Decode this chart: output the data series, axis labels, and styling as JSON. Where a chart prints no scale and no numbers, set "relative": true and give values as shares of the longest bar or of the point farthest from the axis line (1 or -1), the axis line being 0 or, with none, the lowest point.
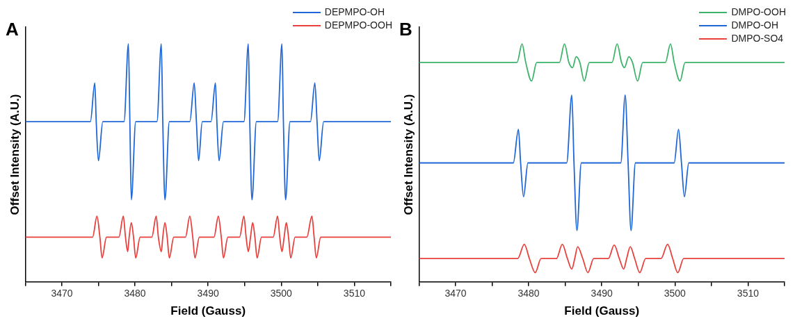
{
  "chart_data": [
    {
      "type": "line",
      "title": "A",
      "xlabel": "Field (Gauss)",
      "ylabel": "Offset Intensity (A.U.)",
      "relative": true,
      "legend": "top right",
      "grid": false,
      "marker": "none",
      "line_style": "solid",
      "xlim": [
        3465,
        3515
      ],
      "xticks": [
        {
          "value": 3465,
          "label": null
        },
        3470,
        {
          "value": 3475,
          "label": null
        },
        3480,
        {
          "value": 3485,
          "label": null
        },
        3490,
        {
          "value": 3495,
          "label": null
        },
        3500,
        {
          "value": 3505,
          "label": null
        },
        3510,
        {
          "value": 3515,
          "label": null
        }
      ],
      "series": [
        {
          "name": "DEPMPO-OH",
          "color": "#1f66d6",
          "x": [
            3465,
            3473.9,
            3474.5,
            3474.7,
            3475.0,
            3475.6,
            3478.5,
            3479.1,
            3479.3,
            3479.5,
            3480.1,
            3483.0,
            3483.6,
            3483.8,
            3484.1,
            3484.7,
            3487.5,
            3488.1,
            3488.4,
            3488.7,
            3489.2,
            3490.4,
            3491.0,
            3491.2,
            3491.5,
            3492.1,
            3494.9,
            3495.5,
            3495.7,
            3496.0,
            3496.6,
            3499.5,
            3500.1,
            3500.3,
            3500.6,
            3501.2,
            3504.0,
            3504.6,
            3504.9,
            3505.2,
            3505.8,
            3515
          ],
          "values": [
            0.673,
            0.673,
            0.836,
            0.673,
            0.509,
            0.673,
            0.673,
            1.0,
            0.673,
            0.345,
            0.673,
            0.673,
            1.0,
            0.673,
            0.345,
            0.673,
            0.673,
            0.836,
            0.673,
            0.509,
            0.673,
            0.673,
            0.836,
            0.673,
            0.509,
            0.673,
            0.673,
            1.0,
            0.673,
            0.345,
            0.673,
            0.673,
            1.0,
            0.673,
            0.345,
            0.673,
            0.673,
            0.836,
            0.673,
            0.509,
            0.673,
            0.673
          ]
        },
        {
          "name": "DEPMPO-OOH",
          "color": "#e8403c",
          "x": [
            3465,
            3474.2,
            3474.8,
            3475.2,
            3475.5,
            3476.1,
            3477.8,
            3478.4,
            3478.7,
            3479.0,
            3479.2,
            3479.5,
            3479.8,
            3480.1,
            3480.7,
            3482.3,
            3482.9,
            3483.2,
            3483.6,
            3483.8,
            3484.1,
            3484.4,
            3484.7,
            3485.3,
            3486.9,
            3487.5,
            3487.9,
            3488.2,
            3488.8,
            3490.8,
            3491.4,
            3491.8,
            3492.1,
            3492.7,
            3494.3,
            3494.9,
            3495.2,
            3495.5,
            3495.8,
            3496.1,
            3496.4,
            3496.7,
            3497.3,
            3498.9,
            3499.5,
            3499.8,
            3500.1,
            3500.4,
            3500.7,
            3501.0,
            3501.3,
            3501.9,
            3503.5,
            3504.2,
            3504.5,
            3504.8,
            3505.4,
            3515
          ],
          "values": [
            0.188,
            0.188,
            0.276,
            0.188,
            0.101,
            0.188,
            0.188,
            0.276,
            0.188,
            0.127,
            0.188,
            0.249,
            0.188,
            0.101,
            0.188,
            0.188,
            0.276,
            0.188,
            0.127,
            0.188,
            0.249,
            0.188,
            0.101,
            0.188,
            0.188,
            0.276,
            0.188,
            0.101,
            0.188,
            0.188,
            0.276,
            0.188,
            0.101,
            0.188,
            0.188,
            0.276,
            0.188,
            0.127,
            0.188,
            0.249,
            0.188,
            0.101,
            0.188,
            0.188,
            0.276,
            0.188,
            0.127,
            0.188,
            0.249,
            0.188,
            0.101,
            0.188,
            0.188,
            0.276,
            0.188,
            0.101,
            0.188,
            0.188
          ]
        }
      ]
    },
    {
      "type": "line",
      "title": "B",
      "xlabel": "Field (Gauss)",
      "ylabel": "Offset Intensity (A.U.)",
      "relative": true,
      "legend": "top right",
      "grid": false,
      "marker": "none",
      "line_style": "solid",
      "xlim": [
        3465,
        3515
      ],
      "xticks": [
        {
          "value": 3465,
          "label": null
        },
        3470,
        {
          "value": 3475,
          "label": null
        },
        3480,
        {
          "value": 3485,
          "label": null
        },
        3490,
        {
          "value": 3495,
          "label": null
        },
        3500,
        {
          "value": 3505,
          "label": null
        },
        3510,
        {
          "value": 3515,
          "label": null
        }
      ],
      "series": [
        {
          "name": "DMPO-OOH",
          "color": "#3cb36a",
          "x": [
            3465,
            3478.4,
            3479.1,
            3479.6,
            3480.4,
            3481.1,
            3484.2,
            3484.9,
            3485.5,
            3486.0,
            3486.5,
            3487.0,
            3487.6,
            3488.3,
            3491.4,
            3492.1,
            3492.7,
            3493.1,
            3493.7,
            3494.2,
            3494.9,
            3495.6,
            3498.7,
            3499.4,
            3499.9,
            3500.7,
            3501.4,
            3515
          ],
          "values": [
            0.922,
            0.922,
            1.0,
            0.922,
            0.844,
            0.922,
            0.922,
            1.0,
            0.922,
            0.9,
            0.946,
            0.922,
            0.844,
            0.922,
            0.922,
            1.0,
            0.922,
            0.9,
            0.946,
            0.922,
            0.844,
            0.922,
            0.922,
            1.0,
            0.922,
            0.844,
            0.922,
            0.922
          ]
        },
        {
          "name": "DMPO-OH",
          "color": "#1f66d6",
          "x": [
            3465,
            3477.9,
            3478.6,
            3478.9,
            3479.3,
            3479.9,
            3485.2,
            3485.9,
            3486.2,
            3486.6,
            3487.2,
            3492.6,
            3493.2,
            3493.6,
            3494.0,
            3494.6,
            3499.9,
            3500.5,
            3500.9,
            3501.3,
            3501.9,
            3515
          ],
          "values": [
            0.5,
            0.5,
            0.641,
            0.5,
            0.358,
            0.5,
            0.5,
            0.785,
            0.5,
            0.216,
            0.5,
            0.5,
            0.785,
            0.5,
            0.216,
            0.5,
            0.5,
            0.641,
            0.5,
            0.358,
            0.5,
            0.5
          ]
        },
        {
          "name": "DMPO-SO4",
          "color": "#e8403c",
          "x": [
            3465,
            3478.5,
            3479.4,
            3480.1,
            3480.9,
            3481.7,
            3483.8,
            3484.6,
            3485.3,
            3485.9,
            3486.3,
            3486.7,
            3487.4,
            3488.1,
            3488.9,
            3490.9,
            3491.7,
            3492.4,
            3493.0,
            3493.4,
            3493.9,
            3494.5,
            3495.2,
            3496.0,
            3498.1,
            3499.0,
            3499.7,
            3500.4,
            3501.2,
            3515
          ],
          "values": [
            0.098,
            0.098,
            0.158,
            0.098,
            0.039,
            0.098,
            0.098,
            0.158,
            0.098,
            0.054,
            0.098,
            0.148,
            0.098,
            0.039,
            0.098,
            0.098,
            0.155,
            0.098,
            0.054,
            0.098,
            0.148,
            0.098,
            0.039,
            0.098,
            0.098,
            0.158,
            0.098,
            0.039,
            0.098,
            0.098
          ]
        }
      ]
    }
  ]
}
